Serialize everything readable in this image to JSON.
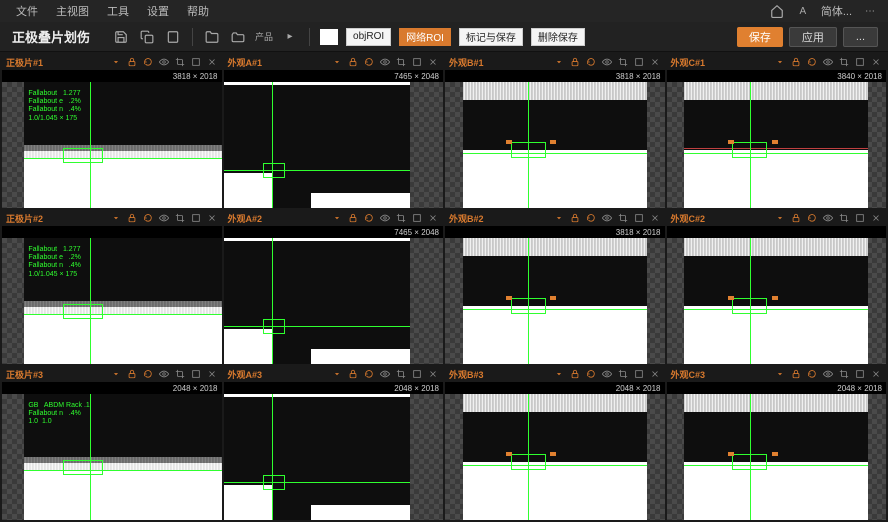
{
  "menu": {
    "items": [
      "文件",
      "主视图",
      "工具",
      "设置",
      "帮助"
    ]
  },
  "topright": {
    "user": "A",
    "lang": "简体..."
  },
  "app": {
    "title": "正极叠片划伤"
  },
  "toolbar": {
    "roi1": "objROI",
    "roi2": "网络ROI",
    "roi3": "标记与保存",
    "roi4": "删除保存"
  },
  "actions": {
    "primary": "保存",
    "secondary": "应用",
    "tertiary": "..."
  },
  "panel_icons": [
    "chev",
    "lock",
    "loop",
    "eye",
    "crop",
    "square",
    "close"
  ],
  "panels": [
    {
      "label": "正极片#1",
      "sub_l": "",
      "sub_r": "3818 × 2018",
      "info": "Fallabout   1.277\nFallabout e   .2%\nFallabout n   .4%\n1.0/1.045 × 175"
    },
    {
      "label": "外观A#1",
      "sub_l": "",
      "sub_r": "7465 × 2048"
    },
    {
      "label": "外观B#1",
      "sub_l": "",
      "sub_r": "3818 × 2018"
    },
    {
      "label": "外观C#1",
      "sub_l": "",
      "sub_r": "3840 × 2018"
    },
    {
      "label": "正极片#2",
      "sub_l": "",
      "sub_r": "",
      "info": "Fallabout   1.277\nFallabout e   .2%\nFallabout n   .4%\n1.0/1.045 × 175"
    },
    {
      "label": "外观A#2",
      "sub_l": "",
      "sub_r": "7465 × 2048"
    },
    {
      "label": "外观B#2",
      "sub_l": "",
      "sub_r": "3818 × 2018"
    },
    {
      "label": "外观C#2",
      "sub_l": "",
      "sub_r": ""
    },
    {
      "label": "正极片#3",
      "sub_l": "",
      "sub_r": "2048 × 2018",
      "info": "GB   ABDM Rack .1\nFallabout n   .4%\n1.0  1.0"
    },
    {
      "label": "外观A#3",
      "sub_l": "",
      "sub_r": "2048 × 2018"
    },
    {
      "label": "外观B#3",
      "sub_l": "",
      "sub_r": "2048 × 2018"
    },
    {
      "label": "外观C#3",
      "sub_l": "",
      "sub_r": "2048 × 2018"
    }
  ],
  "colors": {
    "accent": "#d97a2e",
    "green": "#2fff2f",
    "bg": "#2a2a2a",
    "panel_bg": "#1a1a1a"
  }
}
